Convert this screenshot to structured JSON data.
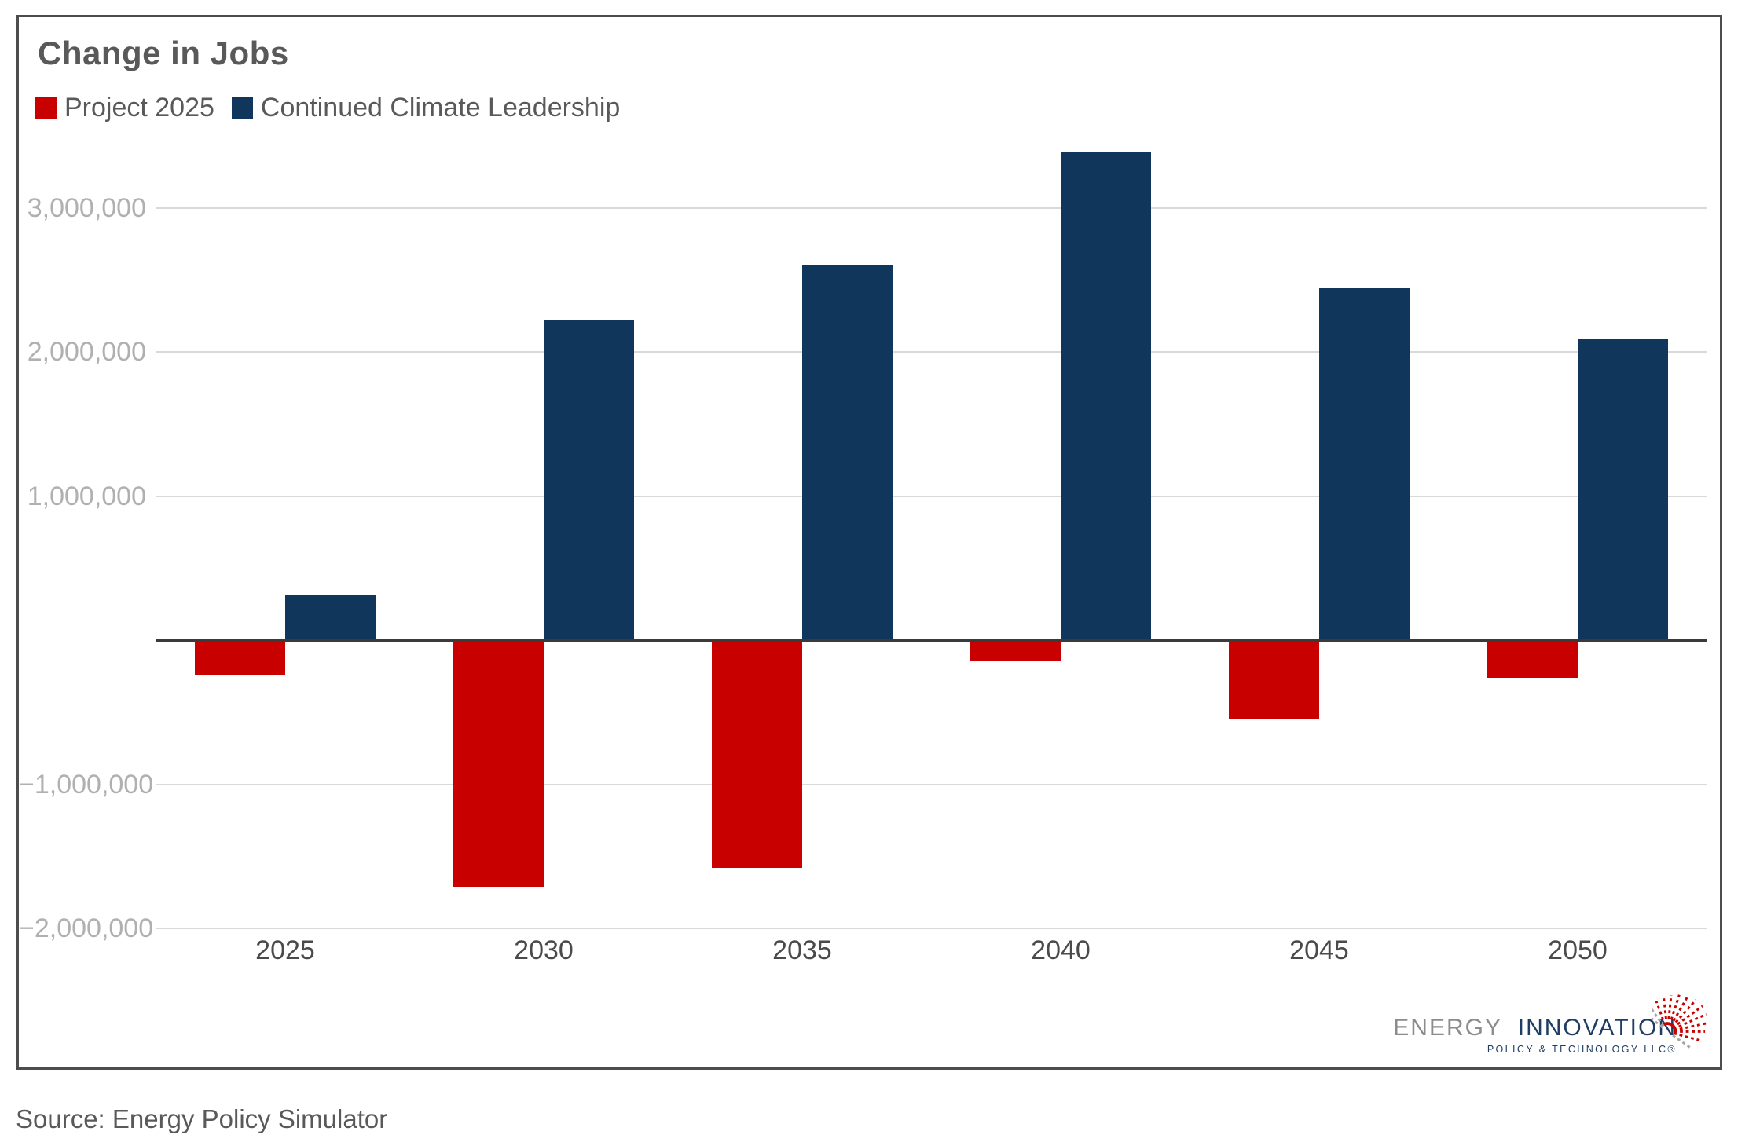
{
  "title": "Change in Jobs",
  "legend": {
    "items": [
      {
        "label": "Project 2025",
        "color": "#C90000"
      },
      {
        "label": "Continued Climate Leadership",
        "color": "#10365C"
      }
    ]
  },
  "chart_data": {
    "type": "bar",
    "title": "Change in Jobs",
    "categories": [
      "2025",
      "2030",
      "2035",
      "2040",
      "2045",
      "2050"
    ],
    "series": [
      {
        "name": "Project 2025",
        "color": "#C90000",
        "values": [
          -240000,
          -1710000,
          -1580000,
          -140000,
          -550000,
          -260000
        ]
      },
      {
        "name": "Continued Climate Leadership",
        "color": "#10365C",
        "values": [
          310000,
          2220000,
          2600000,
          3390000,
          2440000,
          2090000
        ]
      }
    ],
    "y_axis": {
      "ticks": [
        {
          "value": 3000000,
          "label": "3,000,000"
        },
        {
          "value": 2000000,
          "label": "2,000,000"
        },
        {
          "value": 1000000,
          "label": "1,000,000"
        },
        {
          "value": -1000000,
          "label": "−1,000,000"
        },
        {
          "value": -2000000,
          "label": "−2,000,000"
        }
      ]
    },
    "ylim": [
      -2150000,
      3500000
    ],
    "grid": true,
    "zero_line": true,
    "legend_position": "top-left",
    "xlabel": "",
    "ylabel": ""
  },
  "logo": {
    "part1": "ENERGY",
    "part2": "INNOVATION",
    "subtitle": "POLICY & TECHNOLOGY LLC®"
  },
  "source": "Source: Energy Policy Simulator",
  "colors": {
    "project2025_red": "#C90000",
    "climate_leadership_navy": "#10365C",
    "title_text": "#595959",
    "y_tick_labels": "#b0b0b0",
    "x_tick_labels": "#4a4a4a",
    "gridline": "#d9d9d9",
    "zero_line": "#3a3a3a",
    "card_border": "#4d4d4d",
    "logo_gray": "#8c8c8c",
    "logo_navy": "#1E3C64"
  }
}
